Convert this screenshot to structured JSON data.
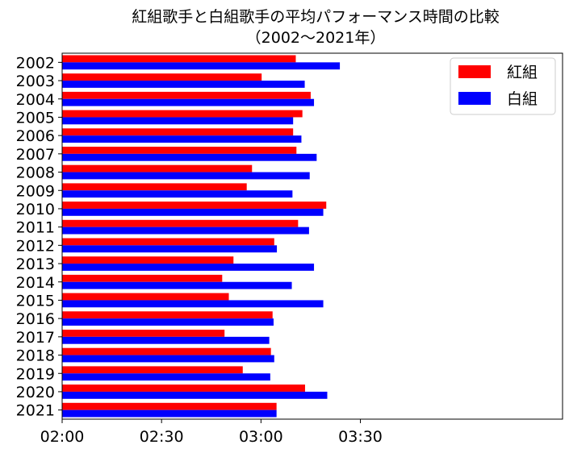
{
  "chart_data": {
    "type": "bar",
    "orientation": "horizontal",
    "title_line1": "紅組歌手と白組歌手の平均パフォーマンス時間の比較",
    "title_line2": "（2002〜2021年）",
    "categories": [
      "2002",
      "2003",
      "2004",
      "2005",
      "2006",
      "2007",
      "2008",
      "2009",
      "2010",
      "2011",
      "2012",
      "2013",
      "2014",
      "2015",
      "2016",
      "2017",
      "2018",
      "2019",
      "2020",
      "2021"
    ],
    "x_tick_labels": [
      "02:00",
      "02:30",
      "03:00",
      "03:30"
    ],
    "x_tick_minutes": [
      120,
      150,
      180,
      210
    ],
    "xlim_minutes": [
      120,
      271
    ],
    "unit": "minutes",
    "series": [
      {
        "name": "紅組",
        "color": "#ff0000",
        "values": [
          190.5,
          180.2,
          195.0,
          192.5,
          189.7,
          190.7,
          177.3,
          175.7,
          199.7,
          191.2,
          184.0,
          171.7,
          168.3,
          170.3,
          183.5,
          169.0,
          183.0,
          174.5,
          193.3,
          184.7
        ]
      },
      {
        "name": "白組",
        "color": "#0000ff",
        "values": [
          203.8,
          193.2,
          196.0,
          189.7,
          192.2,
          196.8,
          194.7,
          189.5,
          198.8,
          194.5,
          184.8,
          196.0,
          189.3,
          198.8,
          183.8,
          182.5,
          184.0,
          182.8,
          200.0,
          184.7
        ]
      }
    ],
    "legend_position": "top-right",
    "grid": false
  }
}
